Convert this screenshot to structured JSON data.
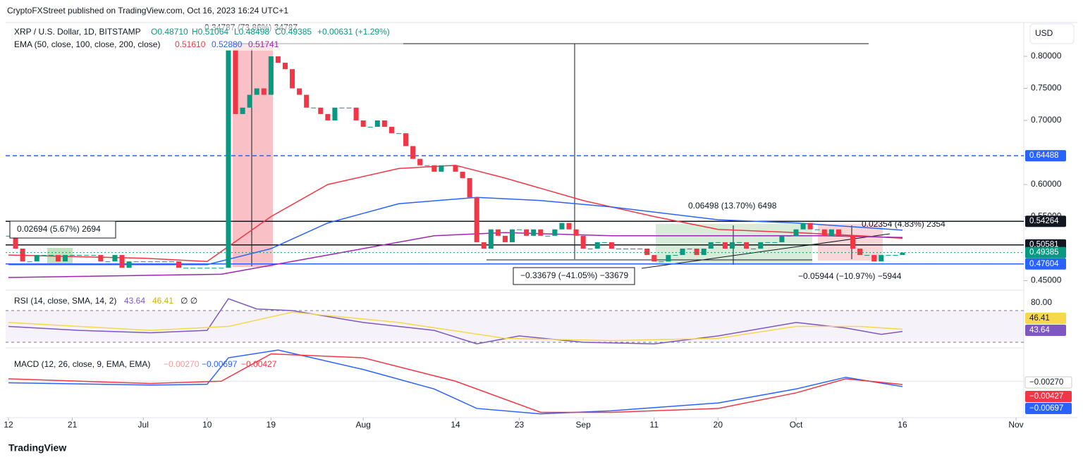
{
  "page": {
    "byline": "CryptoFXStreet published on TradingView.com, Oct 16, 2023 16:24 UTC+1",
    "currency": "USD",
    "brand": "TradingView"
  },
  "chart_data": [
    {
      "type": "candlestick",
      "title": "XRP / U.S. Dollar, 1D, BITSTAMP",
      "ohlc_labels": [
        "O0.48710",
        "H0.51064",
        "L0.48498",
        "C0.49385",
        "+0.00631 (+1.29%)"
      ],
      "xlim": [
        0,
        142
      ],
      "xticks": [
        {
          "value": 0,
          "label": "12"
        },
        {
          "value": 9,
          "label": "21"
        },
        {
          "value": 19,
          "label": "Jul"
        },
        {
          "value": 28,
          "label": "10"
        },
        {
          "value": 37,
          "label": "19"
        },
        {
          "value": 50,
          "label": "Aug"
        },
        {
          "value": 63,
          "label": "14"
        },
        {
          "value": 72,
          "label": "23"
        },
        {
          "value": 81,
          "label": "Sep"
        },
        {
          "value": 91,
          "label": "11"
        },
        {
          "value": 100,
          "label": "20"
        },
        {
          "value": 111,
          "label": "Oct"
        },
        {
          "value": 126,
          "label": "16"
        },
        {
          "value": 142,
          "label": "Nov"
        }
      ],
      "ylim": [
        0.44,
        0.84
      ],
      "yticks": [
        {
          "value": 0.45,
          "label": "0.45000"
        },
        {
          "value": 0.55,
          "label": "0.55000"
        },
        {
          "value": 0.6,
          "label": "0.60000"
        },
        {
          "value": 0.7,
          "label": "0.70000"
        },
        {
          "value": 0.75,
          "label": "0.75000"
        },
        {
          "value": 0.8,
          "label": "0.80000"
        }
      ],
      "up_color": "#089981",
      "down_color": "#f23645",
      "close": [
        0.52,
        0.5,
        0.48,
        0.48,
        0.49,
        0.49,
        0.49,
        0.48,
        0.49,
        0.49,
        0.49,
        0.49,
        0.49,
        0.48,
        0.48,
        0.49,
        0.47,
        0.48,
        0.48,
        0.48,
        0.48,
        0.48,
        0.48,
        0.48,
        0.47,
        0.47,
        0.47,
        0.47,
        0.47,
        0.47,
        0.47,
        0.81,
        0.71,
        0.72,
        0.74,
        0.75,
        0.74,
        0.8,
        0.79,
        0.78,
        0.75,
        0.74,
        0.72,
        0.72,
        0.71,
        0.7,
        0.72,
        0.72,
        0.72,
        0.7,
        0.69,
        0.69,
        0.7,
        0.69,
        0.68,
        0.68,
        0.66,
        0.64,
        0.63,
        0.63,
        0.62,
        0.63,
        0.63,
        0.62,
        0.61,
        0.58,
        0.51,
        0.5,
        0.53,
        0.52,
        0.51,
        0.53,
        0.53,
        0.52,
        0.53,
        0.52,
        0.52,
        0.53,
        0.54,
        0.53,
        0.52,
        0.5,
        0.5,
        0.51,
        0.51,
        0.5,
        0.5,
        0.5,
        0.5,
        0.5,
        0.49,
        0.48,
        0.48,
        0.49,
        0.49,
        0.5,
        0.5,
        0.49,
        0.5,
        0.51,
        0.51,
        0.5,
        0.51,
        0.51,
        0.5,
        0.5,
        0.51,
        0.51,
        0.51,
        0.52,
        0.52,
        0.53,
        0.54,
        0.53,
        0.53,
        0.52,
        0.53,
        0.52,
        0.52,
        0.5,
        0.49,
        0.49,
        0.48,
        0.49,
        0.49,
        0.49,
        0.49385
      ],
      "ema_title": "EMA (50, close, 100, close, 200, close)",
      "ema": [
        {
          "color": "#f23645",
          "last_label": "0.51610",
          "x": [
            0,
            19,
            28,
            37,
            45,
            55,
            63,
            70,
            81,
            91,
            100,
            111,
            120,
            126
          ],
          "values": [
            0.49,
            0.485,
            0.48,
            0.55,
            0.6,
            0.625,
            0.63,
            0.61,
            0.575,
            0.55,
            0.53,
            0.525,
            0.52,
            0.5161
          ]
        },
        {
          "color": "#2962ff",
          "last_label": "0.52880",
          "x": [
            0,
            28,
            37,
            45,
            55,
            66,
            75,
            85,
            100,
            111,
            126
          ],
          "values": [
            0.475,
            0.475,
            0.5,
            0.54,
            0.57,
            0.58,
            0.575,
            0.565,
            0.545,
            0.54,
            0.5288
          ]
        },
        {
          "color": "#9c27b0",
          "last_label": "0.51741",
          "x": [
            0,
            30,
            45,
            60,
            70,
            85,
            100,
            115,
            126
          ],
          "values": [
            0.455,
            0.46,
            0.49,
            0.52,
            0.525,
            0.52,
            0.52,
            0.52,
            0.51741
          ]
        }
      ],
      "levels": [
        {
          "value": 0.64488,
          "color": "#2962ff",
          "dashed": true
        },
        {
          "value": 0.54264,
          "color": "#131722"
        },
        {
          "value": 0.50581,
          "color": "#131722"
        },
        {
          "value": 0.47604,
          "color": "#2962ff"
        }
      ],
      "annotations": [
        "0.34787 (73.86%) 34787",
        "0.02694 (5.67%) 2694",
        "0.06498 (13.70%) 6498",
        "0.02354 (4.83%) 2354",
        "−0.33679 (−41.05%) −33679",
        "−0.05944 (−10.97%) −5944"
      ]
    },
    {
      "type": "line",
      "title": "RSI (14, close, SMA, 14, 2)",
      "extra": "∅ ∅",
      "xlim": [
        0,
        142
      ],
      "ylim": [
        26,
        90
      ],
      "yticks": [
        {
          "value": 80,
          "label": "80.00"
        }
      ],
      "bands": [
        30,
        70
      ],
      "series": [
        {
          "color": "#7e57c2",
          "x": [
            0,
            10,
            20,
            28,
            31,
            35,
            40,
            50,
            60,
            66,
            72,
            81,
            91,
            100,
            111,
            118,
            123,
            126
          ],
          "values": [
            50,
            45,
            42,
            45,
            85,
            72,
            70,
            55,
            45,
            28,
            38,
            30,
            28,
            38,
            55,
            48,
            40,
            43.64
          ]
        },
        {
          "color": "#f7d84a",
          "x": [
            0,
            20,
            31,
            40,
            55,
            70,
            85,
            100,
            111,
            120,
            126
          ],
          "values": [
            55,
            45,
            50,
            68,
            55,
            35,
            32,
            35,
            50,
            50,
            46.41
          ]
        }
      ]
    },
    {
      "type": "line",
      "title": "MACD (12, 26, close, 9, EMA, EMA)",
      "xlim": [
        0,
        142
      ],
      "ylim": [
        -0.045,
        0.04
      ],
      "series": [
        {
          "color": "#2962ff",
          "label": "−0.00697",
          "x": [
            0,
            20,
            28,
            31,
            38,
            50,
            60,
            66,
            75,
            85,
            100,
            111,
            118,
            126
          ],
          "values": [
            -0.002,
            -0.005,
            -0.004,
            0.03,
            0.04,
            0.015,
            -0.01,
            -0.035,
            -0.042,
            -0.038,
            -0.028,
            -0.01,
            0.005,
            -0.00697
          ]
        },
        {
          "color": "#f23645",
          "label": "−0.00427",
          "x": [
            0,
            20,
            30,
            37,
            50,
            63,
            75,
            85,
            100,
            111,
            118,
            126
          ],
          "values": [
            0.003,
            -0.003,
            0,
            0.035,
            0.03,
            0,
            -0.04,
            -0.04,
            -0.035,
            -0.015,
            0.003,
            -0.00427
          ]
        }
      ],
      "histogram_label": "−0.00270"
    }
  ]
}
